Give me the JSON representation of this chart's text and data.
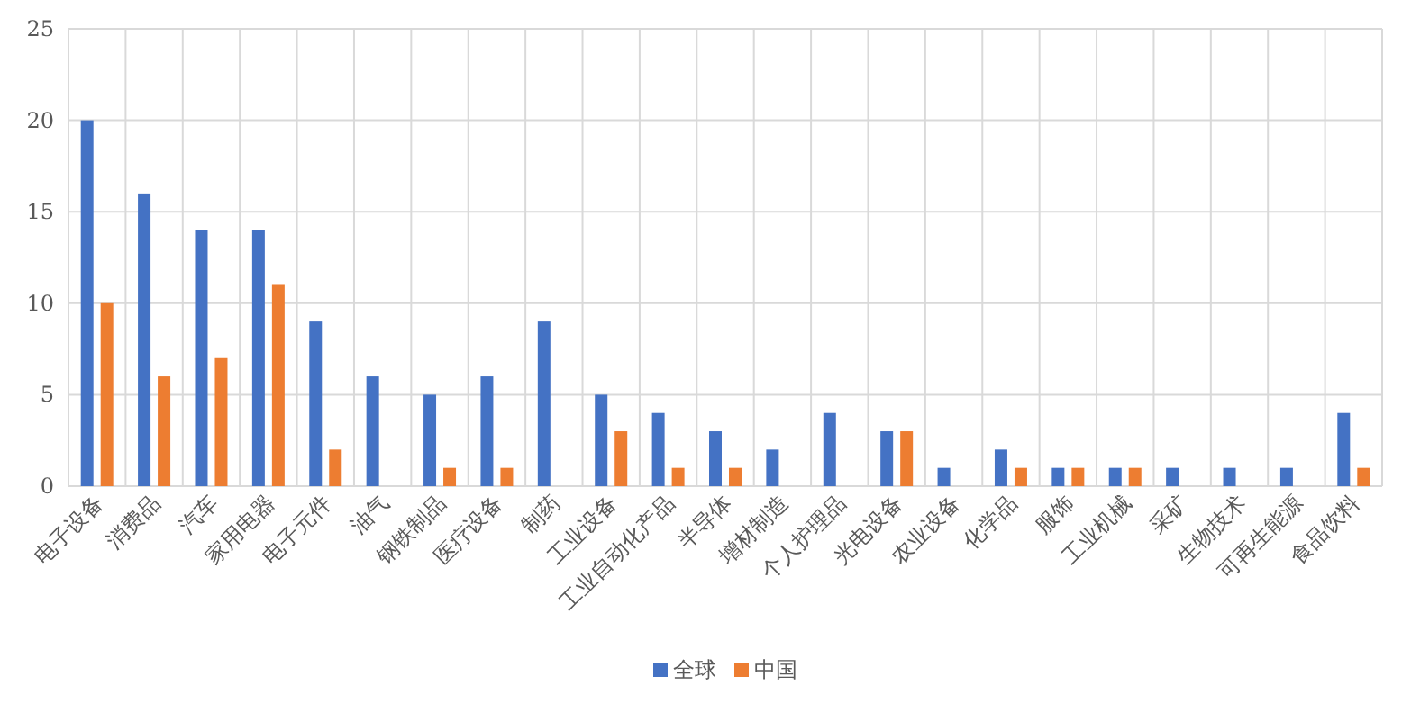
{
  "chart_data": {
    "type": "bar",
    "categories": [
      "电子设备",
      "消费品",
      "汽车",
      "家用电器",
      "电子元件",
      "油气",
      "钢铁制品",
      "医疗设备",
      "制药",
      "工业设备",
      "工业自动化产品",
      "半导体",
      "增材制造",
      "个人护理品",
      "光电设备",
      "农业设备",
      "化学品",
      "服饰",
      "工业机械",
      "采矿",
      "生物技术",
      "可再生能源",
      "食品饮料"
    ],
    "series": [
      {
        "name": "全球",
        "color": "#4472c4",
        "values": [
          20,
          16,
          14,
          14,
          9,
          6,
          5,
          6,
          9,
          5,
          4,
          3,
          2,
          4,
          3,
          1,
          2,
          1,
          1,
          1,
          1,
          1,
          4
        ]
      },
      {
        "name": "中国",
        "color": "#ed7d31",
        "values": [
          10,
          6,
          7,
          11,
          2,
          0,
          1,
          1,
          0,
          3,
          1,
          1,
          0,
          0,
          3,
          0,
          1,
          1,
          1,
          0,
          0,
          0,
          1
        ]
      }
    ],
    "ylim": [
      0,
      25
    ],
    "yticks": [
      0,
      5,
      10,
      15,
      20,
      25
    ],
    "grid": true,
    "legend": "bottom"
  }
}
